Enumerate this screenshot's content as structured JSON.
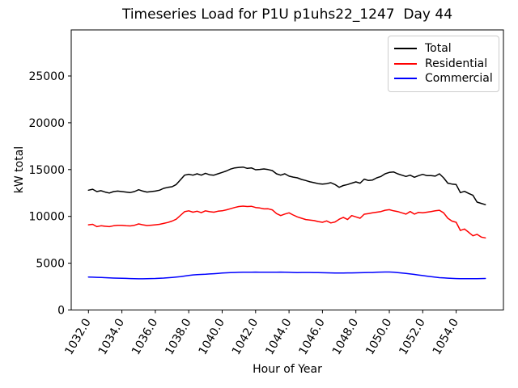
{
  "title": "Timeseries Load for P1U p1uhs22_1247  Day 44",
  "chart_data": {
    "type": "line",
    "title": "Timeseries Load for P1U p1uhs22_1247  Day 44",
    "xlabel": "Hour of Year",
    "ylabel": "kW total",
    "xlim": [
      1030.8,
      1056.9
    ],
    "ylim": [
      0,
      29900
    ],
    "grid": false,
    "legend_position": "upper right",
    "x_tick_labels": [
      "1032.0",
      "1034.0",
      "1036.0",
      "1038.0",
      "1040.0",
      "1042.0",
      "1044.0",
      "1046.0",
      "1048.0",
      "1050.0",
      "1052.0",
      "1054.0"
    ],
    "y_ticks": [
      0,
      5000,
      10000,
      15000,
      20000,
      25000
    ],
    "x_start": 1032.0,
    "x_step": 0.25,
    "series": [
      {
        "name": "Total",
        "color": "#000000",
        "values": [
          12800,
          12900,
          12650,
          12750,
          12600,
          12500,
          12650,
          12700,
          12650,
          12600,
          12550,
          12650,
          12850,
          12700,
          12600,
          12650,
          12700,
          12800,
          13000,
          13100,
          13170,
          13400,
          13900,
          14400,
          14500,
          14400,
          14550,
          14400,
          14600,
          14450,
          14400,
          14550,
          14700,
          14850,
          15050,
          15180,
          15230,
          15270,
          15130,
          15180,
          14980,
          15020,
          15070,
          15000,
          14900,
          14550,
          14400,
          14550,
          14300,
          14200,
          14120,
          13950,
          13830,
          13700,
          13600,
          13500,
          13450,
          13500,
          13600,
          13400,
          13110,
          13300,
          13400,
          13550,
          13690,
          13550,
          13980,
          13830,
          13890,
          14120,
          14270,
          14550,
          14700,
          14750,
          14550,
          14400,
          14270,
          14400,
          14180,
          14350,
          14490,
          14350,
          14350,
          14300,
          14550,
          14120,
          13550,
          13450,
          13400,
          12540,
          12680,
          12450,
          12250,
          11530,
          11390,
          11250
        ]
      },
      {
        "name": "Residential",
        "color": "#ff0000",
        "values": [
          9100,
          9150,
          8900,
          9000,
          8950,
          8900,
          9000,
          9050,
          9050,
          9000,
          8980,
          9050,
          9200,
          9100,
          9020,
          9060,
          9100,
          9150,
          9250,
          9350,
          9500,
          9700,
          10100,
          10500,
          10600,
          10450,
          10550,
          10400,
          10600,
          10500,
          10450,
          10550,
          10600,
          10700,
          10820,
          10950,
          11050,
          11100,
          11050,
          11080,
          10950,
          10900,
          10800,
          10810,
          10700,
          10300,
          10090,
          10250,
          10380,
          10150,
          9950,
          9800,
          9660,
          9600,
          9550,
          9450,
          9370,
          9520,
          9300,
          9400,
          9700,
          9900,
          9660,
          10090,
          9950,
          9800,
          10230,
          10300,
          10380,
          10450,
          10520,
          10660,
          10720,
          10600,
          10520,
          10380,
          10240,
          10520,
          10240,
          10430,
          10380,
          10450,
          10520,
          10600,
          10660,
          10380,
          9800,
          9500,
          9370,
          8500,
          8650,
          8300,
          7930,
          8080,
          7790,
          7700
        ]
      },
      {
        "name": "Commercial",
        "color": "#0000ff",
        "values": [
          3520,
          3510,
          3490,
          3470,
          3450,
          3430,
          3410,
          3400,
          3390,
          3380,
          3360,
          3345,
          3330,
          3330,
          3340,
          3355,
          3370,
          3390,
          3410,
          3445,
          3480,
          3520,
          3560,
          3630,
          3700,
          3750,
          3780,
          3800,
          3820,
          3850,
          3880,
          3915,
          3950,
          3970,
          3990,
          4005,
          4020,
          4030,
          4040,
          4045,
          4050,
          4045,
          4040,
          4035,
          4030,
          4040,
          4050,
          4035,
          4020,
          4010,
          4000,
          4005,
          4010,
          4005,
          4000,
          3990,
          3980,
          3970,
          3960,
          3955,
          3950,
          3955,
          3960,
          3965,
          3970,
          3985,
          4000,
          4005,
          4010,
          4030,
          4050,
          4055,
          4060,
          4030,
          3990,
          3945,
          3900,
          3850,
          3800,
          3740,
          3680,
          3620,
          3560,
          3505,
          3450,
          3425,
          3400,
          3380,
          3360,
          3350,
          3340,
          3340,
          3340,
          3350,
          3360,
          3370
        ]
      }
    ]
  }
}
